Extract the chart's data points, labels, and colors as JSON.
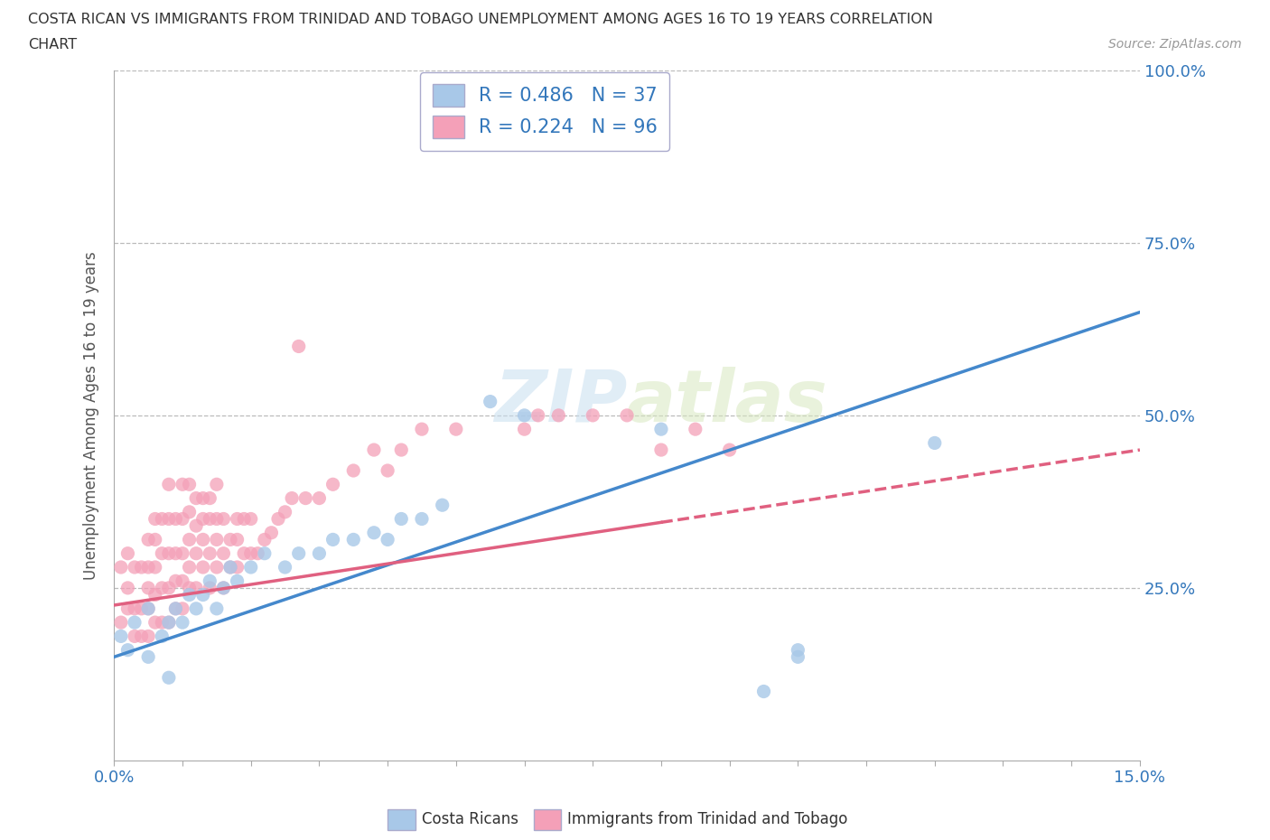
{
  "title_line1": "COSTA RICAN VS IMMIGRANTS FROM TRINIDAD AND TOBAGO UNEMPLOYMENT AMONG AGES 16 TO 19 YEARS CORRELATION",
  "title_line2": "CHART",
  "source_text": "Source: ZipAtlas.com",
  "ylabel": "Unemployment Among Ages 16 to 19 years",
  "xlim": [
    0.0,
    0.15
  ],
  "ylim": [
    0.0,
    1.0
  ],
  "watermark": "ZIPatlas",
  "color_blue": "#a8c8e8",
  "color_pink": "#f4a0b8",
  "color_blue_line": "#4488cc",
  "color_pink_line": "#e06080",
  "blue_r": 0.486,
  "blue_n": 37,
  "pink_r": 0.224,
  "pink_n": 96,
  "scatter_blue_x": [
    0.001,
    0.002,
    0.003,
    0.005,
    0.005,
    0.007,
    0.008,
    0.008,
    0.009,
    0.01,
    0.011,
    0.012,
    0.013,
    0.014,
    0.015,
    0.016,
    0.017,
    0.018,
    0.02,
    0.022,
    0.025,
    0.027,
    0.03,
    0.032,
    0.035,
    0.038,
    0.04,
    0.042,
    0.045,
    0.048,
    0.055,
    0.06,
    0.08,
    0.095,
    0.1,
    0.1,
    0.12
  ],
  "scatter_blue_y": [
    0.18,
    0.16,
    0.2,
    0.15,
    0.22,
    0.18,
    0.2,
    0.12,
    0.22,
    0.2,
    0.24,
    0.22,
    0.24,
    0.26,
    0.22,
    0.25,
    0.28,
    0.26,
    0.28,
    0.3,
    0.28,
    0.3,
    0.3,
    0.32,
    0.32,
    0.33,
    0.32,
    0.35,
    0.35,
    0.37,
    0.52,
    0.5,
    0.48,
    0.1,
    0.15,
    0.16,
    0.46
  ],
  "scatter_pink_x": [
    0.001,
    0.001,
    0.002,
    0.002,
    0.002,
    0.003,
    0.003,
    0.003,
    0.004,
    0.004,
    0.004,
    0.005,
    0.005,
    0.005,
    0.005,
    0.005,
    0.006,
    0.006,
    0.006,
    0.006,
    0.006,
    0.007,
    0.007,
    0.007,
    0.007,
    0.008,
    0.008,
    0.008,
    0.008,
    0.008,
    0.009,
    0.009,
    0.009,
    0.009,
    0.01,
    0.01,
    0.01,
    0.01,
    0.01,
    0.011,
    0.011,
    0.011,
    0.011,
    0.011,
    0.012,
    0.012,
    0.012,
    0.012,
    0.013,
    0.013,
    0.013,
    0.013,
    0.014,
    0.014,
    0.014,
    0.014,
    0.015,
    0.015,
    0.015,
    0.015,
    0.016,
    0.016,
    0.016,
    0.017,
    0.017,
    0.018,
    0.018,
    0.018,
    0.019,
    0.019,
    0.02,
    0.02,
    0.021,
    0.022,
    0.023,
    0.024,
    0.025,
    0.026,
    0.027,
    0.028,
    0.03,
    0.032,
    0.035,
    0.038,
    0.04,
    0.042,
    0.045,
    0.05,
    0.06,
    0.062,
    0.065,
    0.07,
    0.075,
    0.08,
    0.085,
    0.09
  ],
  "scatter_pink_y": [
    0.2,
    0.28,
    0.22,
    0.25,
    0.3,
    0.18,
    0.22,
    0.28,
    0.18,
    0.22,
    0.28,
    0.18,
    0.22,
    0.25,
    0.28,
    0.32,
    0.2,
    0.24,
    0.28,
    0.32,
    0.35,
    0.2,
    0.25,
    0.3,
    0.35,
    0.2,
    0.25,
    0.3,
    0.35,
    0.4,
    0.22,
    0.26,
    0.3,
    0.35,
    0.22,
    0.26,
    0.3,
    0.35,
    0.4,
    0.25,
    0.28,
    0.32,
    0.36,
    0.4,
    0.25,
    0.3,
    0.34,
    0.38,
    0.28,
    0.32,
    0.35,
    0.38,
    0.25,
    0.3,
    0.35,
    0.38,
    0.28,
    0.32,
    0.35,
    0.4,
    0.25,
    0.3,
    0.35,
    0.28,
    0.32,
    0.28,
    0.32,
    0.35,
    0.3,
    0.35,
    0.3,
    0.35,
    0.3,
    0.32,
    0.33,
    0.35,
    0.36,
    0.38,
    0.6,
    0.38,
    0.38,
    0.4,
    0.42,
    0.45,
    0.42,
    0.45,
    0.48,
    0.48,
    0.48,
    0.5,
    0.5,
    0.5,
    0.5,
    0.45,
    0.48,
    0.45
  ]
}
